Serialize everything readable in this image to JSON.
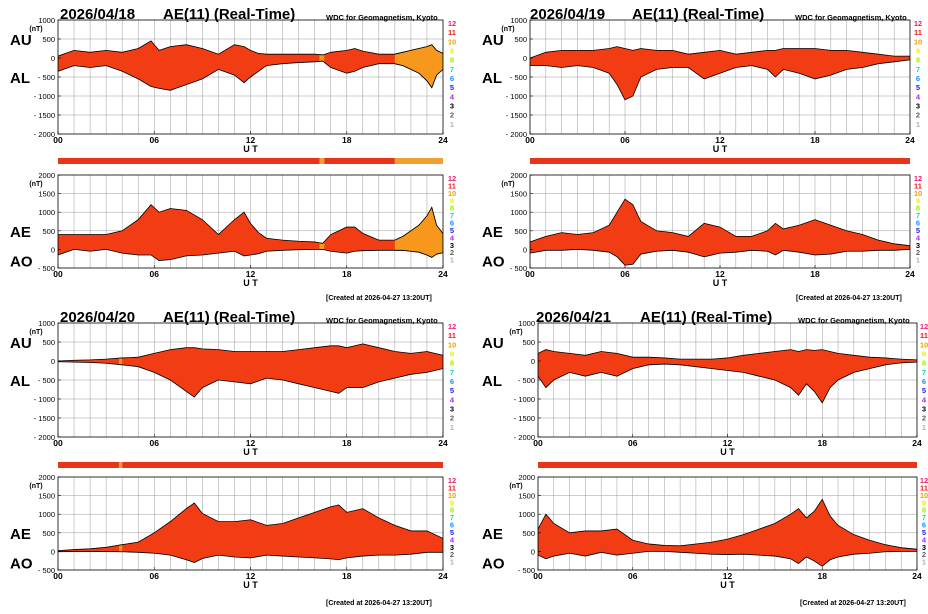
{
  "colors": {
    "fill": "#f23c14",
    "fill_alt": "#f7981d",
    "bar": "#e8351a",
    "bar_alt": "#f0a030",
    "stroke": "#000000",
    "grid": "#9a9a9a"
  },
  "common": {
    "plot_title": "AE(11) (Real-Time)",
    "source": "WDC for Geomagnetism, Kyoto",
    "created": "[Created at 2026-04-27 13:20UT]",
    "unit": "(nT)",
    "ut_label": "U T",
    "x_ticks": [
      "00",
      "06",
      "12",
      "18",
      "24"
    ],
    "upper_y_ticks": [
      "1000",
      "500",
      "0",
      "- 500",
      "- 1000",
      "- 1500",
      "- 2000"
    ],
    "lower_y_ticks": [
      "2000",
      "1500",
      "1000",
      "500",
      "0",
      "- 500"
    ],
    "upper_labels": [
      "AU",
      "AL"
    ],
    "lower_labels": [
      "AE",
      "AO"
    ],
    "kp_labels": [
      "12",
      "11",
      "10",
      "9",
      "8",
      "7",
      "6",
      "5",
      "4",
      "3",
      "2",
      "1"
    ],
    "kp_colors": [
      "#e8206e",
      "#f01818",
      "#f0a000",
      "#f0f000",
      "#a0f000",
      "#10e0c0",
      "#1090ff",
      "#2020f0",
      "#b020f0",
      "#000000",
      "#606060",
      "#b0b0b0"
    ]
  },
  "days": [
    {
      "date": "2026/04/18"
    },
    {
      "date": "2026/04/19"
    },
    {
      "date": "2026/04/20"
    },
    {
      "date": "2026/04/21"
    }
  ],
  "chart_data": [
    {
      "type": "area",
      "title": "2026/04/18 AE(11) (Real-Time)",
      "xlabel": "U T",
      "x_unit": "hours UT",
      "xlim": [
        0,
        24
      ],
      "upper": {
        "ylim": [
          -2000,
          1000
        ],
        "ylabel": "AU / AL (nT)",
        "x": [
          0,
          1,
          2,
          3,
          4,
          5,
          5.8,
          6.3,
          7,
          8,
          9,
          10,
          11,
          11.6,
          12,
          12.5,
          13,
          14,
          15,
          16,
          16.5,
          17,
          18,
          18.5,
          19,
          20,
          21,
          21.5,
          22,
          22.5,
          23,
          23.3,
          23.6,
          24
        ],
        "au": [
          50,
          200,
          150,
          200,
          150,
          250,
          450,
          200,
          300,
          350,
          250,
          100,
          350,
          300,
          200,
          120,
          100,
          100,
          100,
          100,
          80,
          150,
          200,
          250,
          180,
          100,
          100,
          150,
          200,
          250,
          300,
          350,
          200,
          120
        ],
        "al": [
          -350,
          -200,
          -250,
          -200,
          -350,
          -550,
          -750,
          -800,
          -850,
          -700,
          -550,
          -300,
          -450,
          -650,
          -500,
          -350,
          -200,
          -150,
          -120,
          -100,
          -80,
          -250,
          -400,
          -350,
          -250,
          -150,
          -150,
          -200,
          -300,
          -400,
          -600,
          -780,
          -450,
          -300
        ],
        "segments": [
          {
            "x0": 0,
            "x1": 16.3,
            "c": "fill"
          },
          {
            "x0": 16.3,
            "x1": 16.6,
            "c": "fill_alt"
          },
          {
            "x0": 16.6,
            "x1": 21,
            "c": "fill"
          },
          {
            "x0": 21,
            "x1": 24,
            "c": "fill_alt"
          }
        ]
      },
      "lower": {
        "ylim": [
          -500,
          2000
        ],
        "ylabel": "AE / AO (nT)",
        "x": [
          0,
          1,
          2,
          3,
          4,
          5,
          5.8,
          6.3,
          7,
          8,
          9,
          10,
          11,
          11.6,
          12,
          12.5,
          13,
          14,
          15,
          16,
          16.5,
          17,
          18,
          18.5,
          19,
          20,
          21,
          21.5,
          22,
          22.5,
          23,
          23.3,
          23.6,
          24
        ],
        "ae": [
          400,
          400,
          400,
          400,
          500,
          800,
          1200,
          1000,
          1100,
          1050,
          800,
          400,
          800,
          1000,
          700,
          450,
          300,
          250,
          220,
          200,
          160,
          400,
          600,
          600,
          430,
          250,
          250,
          350,
          500,
          650,
          900,
          1130,
          650,
          420
        ],
        "ao": [
          -150,
          0,
          -50,
          0,
          -100,
          -150,
          -150,
          -300,
          -275,
          -175,
          -150,
          -100,
          -50,
          -175,
          -150,
          -115,
          -50,
          -25,
          -10,
          0,
          0,
          -50,
          -100,
          -50,
          -35,
          -25,
          -25,
          -25,
          -50,
          -75,
          -150,
          -215,
          -125,
          -90
        ]
      },
      "bar_segments": [
        {
          "x0": 0,
          "x1": 16.3,
          "c": "bar"
        },
        {
          "x0": 16.3,
          "x1": 16.6,
          "c": "bar_alt"
        },
        {
          "x0": 16.6,
          "x1": 21,
          "c": "bar"
        },
        {
          "x0": 21,
          "x1": 24,
          "c": "bar_alt"
        }
      ]
    },
    {
      "type": "area",
      "title": "2026/04/19 AE(11) (Real-Time)",
      "xlabel": "U T",
      "x_unit": "hours UT",
      "xlim": [
        0,
        24
      ],
      "upper": {
        "ylim": [
          -2000,
          1000
        ],
        "x": [
          0,
          1,
          2,
          3,
          4,
          5,
          5.5,
          6,
          6.5,
          7,
          8,
          9,
          10,
          11,
          12,
          13,
          14,
          15,
          15.5,
          16,
          17,
          18,
          19,
          20,
          21,
          22,
          23,
          24
        ],
        "au": [
          0,
          150,
          200,
          200,
          200,
          250,
          300,
          250,
          200,
          250,
          200,
          200,
          100,
          150,
          200,
          100,
          150,
          200,
          200,
          250,
          250,
          250,
          200,
          200,
          150,
          100,
          50,
          50
        ],
        "al": [
          -200,
          -200,
          -250,
          -200,
          -250,
          -400,
          -700,
          -1100,
          -1000,
          -500,
          -300,
          -250,
          -250,
          -550,
          -400,
          -250,
          -200,
          -300,
          -500,
          -300,
          -400,
          -550,
          -450,
          -300,
          -250,
          -150,
          -100,
          -50
        ]
      },
      "lower": {
        "ylim": [
          -500,
          2000
        ],
        "x": [
          0,
          1,
          2,
          3,
          4,
          5,
          5.5,
          6,
          6.5,
          7,
          8,
          9,
          10,
          11,
          12,
          13,
          14,
          15,
          15.5,
          16,
          17,
          18,
          19,
          20,
          21,
          22,
          23,
          24
        ],
        "ae": [
          200,
          350,
          450,
          400,
          450,
          650,
          1000,
          1350,
          1200,
          750,
          500,
          450,
          350,
          700,
          600,
          350,
          350,
          500,
          700,
          550,
          650,
          800,
          650,
          500,
          400,
          250,
          150,
          100
        ],
        "ao": [
          -100,
          -25,
          -25,
          0,
          -25,
          -75,
          -200,
          -425,
          -400,
          -125,
          -50,
          -25,
          -75,
          -200,
          -100,
          -75,
          -25,
          -50,
          -150,
          -25,
          -75,
          -150,
          -125,
          -50,
          -50,
          -25,
          -25,
          0
        ]
      },
      "bar_segments": [
        {
          "x0": 0,
          "x1": 24,
          "c": "bar"
        }
      ]
    },
    {
      "type": "area",
      "title": "2026/04/20 AE(11) (Real-Time)",
      "xlabel": "U T",
      "x_unit": "hours UT",
      "xlim": [
        0,
        24
      ],
      "upper": {
        "ylim": [
          -2000,
          1000
        ],
        "x": [
          0,
          1,
          2,
          3,
          4,
          5,
          6,
          7,
          8,
          8.5,
          9,
          10,
          11,
          12,
          13,
          14,
          15,
          16,
          17,
          17.5,
          18,
          19,
          20,
          21,
          22,
          23,
          24
        ],
        "au": [
          0,
          20,
          30,
          50,
          80,
          100,
          200,
          300,
          350,
          350,
          320,
          300,
          250,
          250,
          250,
          250,
          300,
          350,
          400,
          400,
          350,
          450,
          350,
          250,
          200,
          250,
          150
        ],
        "al": [
          -20,
          -30,
          -40,
          -60,
          -100,
          -150,
          -300,
          -500,
          -800,
          -950,
          -700,
          -500,
          -550,
          -600,
          -450,
          -500,
          -600,
          -700,
          -800,
          -850,
          -700,
          -700,
          -550,
          -450,
          -350,
          -300,
          -200
        ]
      },
      "lower": {
        "ylim": [
          -500,
          2000
        ],
        "x": [
          0,
          1,
          2,
          3,
          4,
          5,
          6,
          7,
          8,
          8.5,
          9,
          10,
          11,
          12,
          13,
          14,
          15,
          16,
          17,
          17.5,
          18,
          19,
          20,
          21,
          22,
          23,
          24
        ],
        "ae": [
          20,
          50,
          70,
          110,
          180,
          250,
          500,
          800,
          1150,
          1300,
          1020,
          800,
          800,
          850,
          700,
          750,
          900,
          1050,
          1200,
          1250,
          1050,
          1150,
          900,
          700,
          550,
          550,
          350
        ],
        "ao": [
          -10,
          -5,
          -5,
          -5,
          -10,
          -25,
          -50,
          -100,
          -225,
          -300,
          -190,
          -100,
          -150,
          -175,
          -100,
          -125,
          -150,
          -175,
          -200,
          -225,
          -175,
          -125,
          -100,
          -100,
          -75,
          -25,
          -25
        ]
      },
      "bar_segments": [
        {
          "x0": 0,
          "x1": 3.8,
          "c": "bar"
        },
        {
          "x0": 3.8,
          "x1": 4.0,
          "c": "bar_alt"
        },
        {
          "x0": 4.0,
          "x1": 24,
          "c": "bar"
        }
      ]
    },
    {
      "type": "area",
      "title": "2026/04/21 AE(11) (Real-Time)",
      "xlabel": "U T",
      "x_unit": "hours UT",
      "xlim": [
        0,
        24
      ],
      "upper": {
        "ylim": [
          -2000,
          1000
        ],
        "x": [
          0,
          0.5,
          1,
          2,
          3,
          4,
          5,
          6,
          7,
          8,
          9,
          10,
          11,
          12,
          13,
          14,
          15,
          16,
          16.5,
          17,
          17.5,
          18,
          18.5,
          19,
          20,
          21,
          22,
          23,
          24
        ],
        "au": [
          200,
          300,
          250,
          200,
          150,
          250,
          200,
          100,
          100,
          80,
          50,
          50,
          50,
          80,
          150,
          200,
          250,
          300,
          250,
          300,
          280,
          300,
          250,
          200,
          150,
          100,
          80,
          50,
          30
        ],
        "al": [
          -400,
          -700,
          -500,
          -300,
          -400,
          -300,
          -400,
          -200,
          -100,
          -80,
          -100,
          -150,
          -200,
          -250,
          -300,
          -400,
          -500,
          -700,
          -900,
          -600,
          -800,
          -1100,
          -700,
          -500,
          -300,
          -200,
          -100,
          -50,
          -30
        ]
      },
      "lower": {
        "ylim": [
          -500,
          2000
        ],
        "x": [
          0,
          0.5,
          1,
          2,
          3,
          4,
          5,
          6,
          7,
          8,
          9,
          10,
          11,
          12,
          13,
          14,
          15,
          16,
          16.5,
          17,
          17.5,
          18,
          18.5,
          19,
          20,
          21,
          22,
          23,
          24
        ],
        "ae": [
          600,
          1000,
          750,
          500,
          550,
          550,
          600,
          300,
          200,
          160,
          150,
          200,
          250,
          330,
          450,
          600,
          750,
          1000,
          1150,
          900,
          1080,
          1400,
          950,
          700,
          450,
          300,
          180,
          100,
          60
        ],
        "ao": [
          -100,
          -200,
          -125,
          -50,
          -125,
          -25,
          -100,
          -50,
          0,
          0,
          -25,
          -50,
          -75,
          -85,
          -75,
          -100,
          -125,
          -200,
          -325,
          -150,
          -260,
          -400,
          -225,
          -150,
          -75,
          -50,
          -10,
          0,
          0
        ]
      },
      "bar_segments": [
        {
          "x0": 0,
          "x1": 24,
          "c": "bar"
        }
      ]
    }
  ]
}
